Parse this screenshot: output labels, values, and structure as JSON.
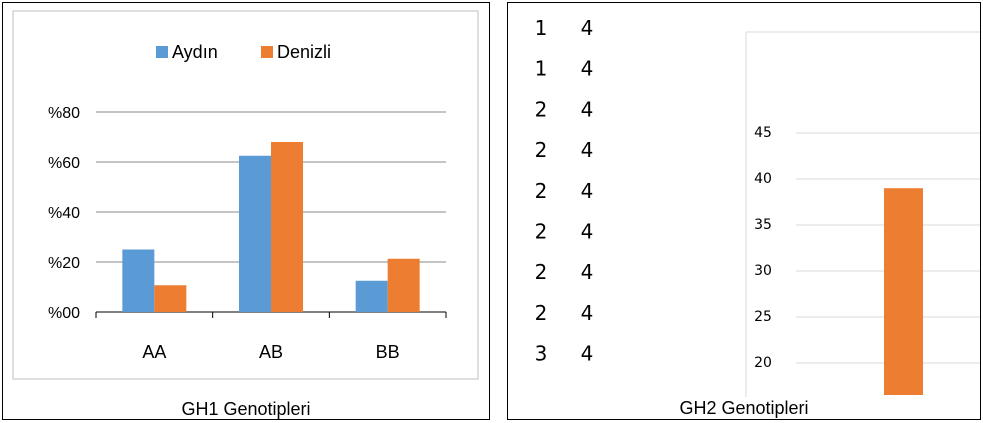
{
  "colors": {
    "aydin": "#5b9bd5",
    "denizli": "#ed7d31",
    "grid": "#888888",
    "axis": "#000000"
  },
  "chart_data": [
    {
      "type": "bar",
      "categories": [
        "AA",
        "AB",
        "BB"
      ],
      "series": [
        {
          "name": "Aydın",
          "values": [
            25,
            62.5,
            12.5
          ]
        },
        {
          "name": "Denizli",
          "values": [
            10.7,
            68,
            21.3
          ]
        }
      ],
      "yticks": [
        "%00",
        "%20",
        "%40",
        "%60",
        "%80"
      ],
      "ylim": [
        0,
        80
      ],
      "grid": true,
      "legend_position": "top",
      "caption": "GH1 Genotipleri"
    },
    {
      "type": "bar",
      "series": [
        {
          "values": [
            39
          ]
        }
      ],
      "yticks": [
        "20",
        "25",
        "30",
        "35",
        "40",
        "45"
      ],
      "ylim": [
        17,
        50
      ],
      "grid": true,
      "left_columns": [
        [
          "1",
          "4"
        ],
        [
          "1",
          "4"
        ],
        [
          "2",
          "4"
        ],
        [
          "2",
          "4"
        ],
        [
          "2",
          "4"
        ],
        [
          "2",
          "4"
        ],
        [
          "2",
          "4"
        ],
        [
          "2",
          "4"
        ],
        [
          "3",
          "4"
        ]
      ],
      "caption": "GH2 Genotipleri"
    }
  ]
}
